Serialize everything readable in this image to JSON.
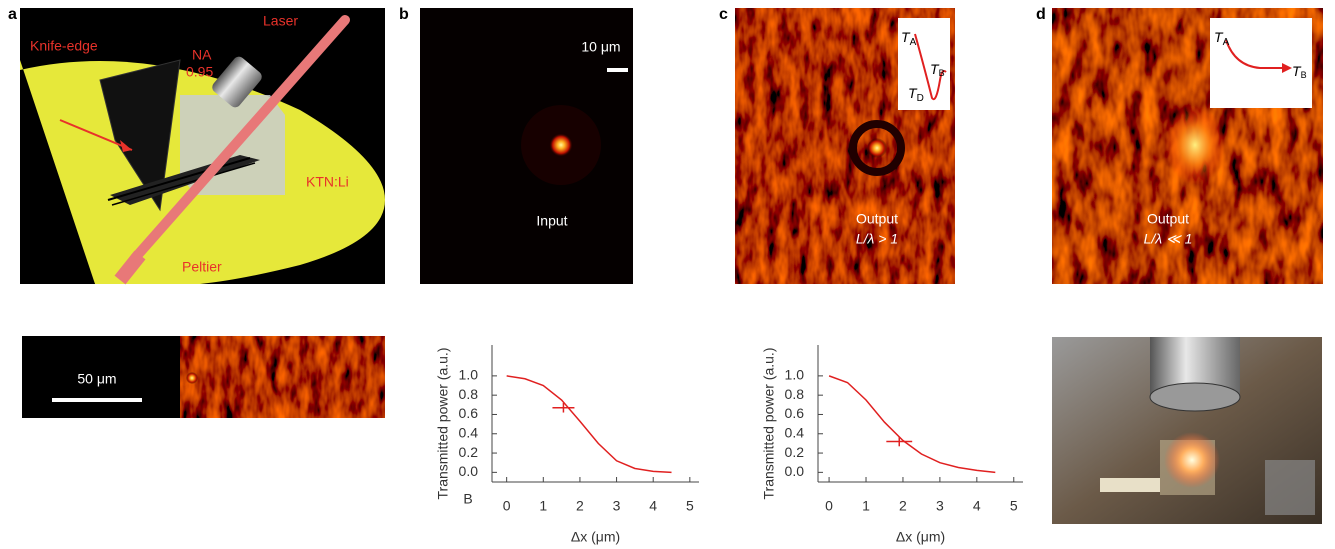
{
  "panel_labels": [
    "a",
    "b",
    "c",
    "d"
  ],
  "panel_a": {
    "knife_edge": "Knife-edge",
    "na": "NA",
    "na_value": "0.95",
    "laser": "Laser",
    "crystal": "KTN:Li",
    "peltier": "Peltier",
    "scale_bar": "50 μm"
  },
  "panel_b": {
    "scale_bar": "10 μm",
    "caption": "Input"
  },
  "panel_c": {
    "caption": "Output",
    "condition": "L/λ > 1",
    "inset": {
      "t_a": [
        "T",
        "A"
      ],
      "t_d": [
        "T",
        "D"
      ],
      "t_b": [
        "T",
        "B"
      ]
    }
  },
  "panel_d": {
    "caption": "Output",
    "condition": "L/λ ≪ 1",
    "inset": {
      "t_a": [
        "T",
        "A"
      ],
      "t_b": [
        "T",
        "B"
      ]
    }
  },
  "chart_data": [
    {
      "type": "line",
      "x": [
        0,
        0.5,
        1,
        1.5,
        2,
        2.5,
        3,
        3.5,
        4,
        4.5
      ],
      "values": [
        1.0,
        0.97,
        0.9,
        0.75,
        0.53,
        0.3,
        0.12,
        0.04,
        0.01,
        0.0
      ],
      "color": "#e02020",
      "marker": {
        "x": 1.55,
        "y": 0.67,
        "xerr": 0.3,
        "yerr": 0.05
      },
      "xlim": [
        -0.4,
        5.25
      ],
      "ylim": [
        -0.1,
        1.32
      ],
      "xticks": [
        0,
        1,
        2,
        3,
        4,
        5
      ],
      "yticks": [
        {
          "value": 0,
          "label": "0.0"
        },
        {
          "value": 0.2,
          "label": "0.2"
        },
        {
          "value": 0.4,
          "label": "0.4"
        },
        {
          "value": 0.6,
          "label": "0.6"
        },
        {
          "value": 0.8,
          "label": "0.8"
        },
        {
          "value": 1,
          "label": "1.0"
        }
      ],
      "x_label": "Δx (μm)",
      "y_label": "Transmitted power (a.u.)",
      "annotation": "B"
    },
    {
      "type": "line",
      "x": [
        0,
        0.5,
        1,
        1.5,
        2,
        2.5,
        3,
        3.5,
        4,
        4.5
      ],
      "values": [
        1.0,
        0.93,
        0.75,
        0.52,
        0.33,
        0.19,
        0.1,
        0.05,
        0.02,
        0.0
      ],
      "color": "#e02020",
      "marker": {
        "x": 1.9,
        "y": 0.32,
        "xerr": 0.35,
        "yerr": 0.05
      },
      "xlim": [
        -0.3,
        5.25
      ],
      "ylim": [
        -0.1,
        1.32
      ],
      "xticks": [
        0,
        1,
        2,
        3,
        4,
        5
      ],
      "yticks": [
        {
          "value": 0,
          "label": "0.0"
        },
        {
          "value": 0.2,
          "label": "0.2"
        },
        {
          "value": 0.4,
          "label": "0.4"
        },
        {
          "value": 0.6,
          "label": "0.6"
        },
        {
          "value": 0.8,
          "label": "0.8"
        },
        {
          "value": 1,
          "label": "1.0"
        }
      ],
      "x_label": "Δx (μm)",
      "y_label": "Transmitted power (a.u.)"
    }
  ]
}
